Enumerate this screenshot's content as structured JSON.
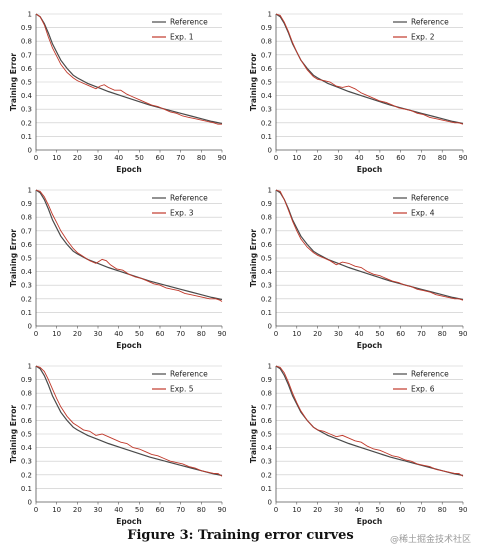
{
  "caption": "Figure 3: Training error curves",
  "watermark": "@稀土掘金技术社区",
  "colors": {
    "reference": "#4a4a4a",
    "experiment": "#c0392b",
    "grid": "#c8c8c8"
  },
  "chart_data": [
    {
      "type": "line",
      "xlabel": "Epoch",
      "ylabel": "Training Error",
      "xlim": [
        0,
        90
      ],
      "ylim": [
        0,
        1
      ],
      "xticks": [
        0,
        10,
        20,
        30,
        40,
        50,
        60,
        70,
        80,
        90
      ],
      "yticks": [
        0,
        0.1,
        0.2,
        0.3,
        0.4,
        0.5,
        0.6,
        0.7,
        0.8,
        0.9,
        1
      ],
      "grid": true,
      "legend_position": "top-right",
      "series": [
        {
          "name": "Reference",
          "x": [
            0,
            2,
            4,
            6,
            8,
            10,
            12,
            15,
            18,
            20,
            25,
            30,
            35,
            40,
            45,
            50,
            55,
            60,
            65,
            70,
            75,
            80,
            85,
            90
          ],
          "y": [
            1,
            0.98,
            0.93,
            0.86,
            0.78,
            0.72,
            0.66,
            0.6,
            0.55,
            0.53,
            0.49,
            0.46,
            0.43,
            0.405,
            0.38,
            0.355,
            0.33,
            0.31,
            0.29,
            0.27,
            0.25,
            0.23,
            0.21,
            0.195
          ]
        },
        {
          "name": "Exp. 1",
          "x": [
            0,
            2,
            4,
            6,
            8,
            10,
            12,
            15,
            18,
            20,
            23,
            26,
            29,
            31,
            33,
            35,
            38,
            41,
            44,
            47,
            50,
            53,
            56,
            59,
            62,
            65,
            68,
            71,
            74,
            77,
            80,
            83,
            86,
            88,
            90
          ],
          "y": [
            1,
            0.98,
            0.92,
            0.83,
            0.75,
            0.69,
            0.63,
            0.57,
            0.53,
            0.51,
            0.49,
            0.47,
            0.45,
            0.47,
            0.48,
            0.46,
            0.44,
            0.44,
            0.41,
            0.39,
            0.37,
            0.35,
            0.33,
            0.32,
            0.3,
            0.28,
            0.27,
            0.25,
            0.24,
            0.23,
            0.22,
            0.21,
            0.2,
            0.19,
            0.19
          ]
        }
      ]
    },
    {
      "type": "line",
      "xlabel": "Epoch",
      "ylabel": "Training Error",
      "xlim": [
        0,
        90
      ],
      "ylim": [
        0,
        1
      ],
      "xticks": [
        0,
        10,
        20,
        30,
        40,
        50,
        60,
        70,
        80,
        90
      ],
      "yticks": [
        0,
        0.1,
        0.2,
        0.3,
        0.4,
        0.5,
        0.6,
        0.7,
        0.8,
        0.9,
        1
      ],
      "grid": true,
      "legend_position": "top-right",
      "series": [
        {
          "name": "Reference",
          "x": [
            0,
            2,
            4,
            6,
            8,
            10,
            12,
            15,
            18,
            20,
            25,
            30,
            35,
            40,
            45,
            50,
            55,
            60,
            65,
            70,
            75,
            80,
            85,
            90
          ],
          "y": [
            1,
            0.98,
            0.93,
            0.86,
            0.78,
            0.72,
            0.66,
            0.6,
            0.55,
            0.53,
            0.49,
            0.46,
            0.43,
            0.405,
            0.38,
            0.355,
            0.33,
            0.31,
            0.29,
            0.27,
            0.25,
            0.23,
            0.21,
            0.195
          ]
        },
        {
          "name": "Exp. 2",
          "x": [
            0,
            2,
            4,
            6,
            8,
            10,
            12,
            15,
            18,
            20,
            23,
            26,
            29,
            32,
            35,
            38,
            41,
            44,
            47,
            50,
            53,
            56,
            59,
            62,
            65,
            68,
            71,
            74,
            77,
            80,
            83,
            86,
            88,
            90
          ],
          "y": [
            1,
            0.99,
            0.94,
            0.87,
            0.79,
            0.72,
            0.66,
            0.59,
            0.54,
            0.52,
            0.51,
            0.5,
            0.47,
            0.46,
            0.47,
            0.45,
            0.42,
            0.4,
            0.38,
            0.36,
            0.35,
            0.33,
            0.31,
            0.3,
            0.29,
            0.27,
            0.26,
            0.24,
            0.23,
            0.22,
            0.21,
            0.2,
            0.2,
            0.19
          ]
        }
      ]
    },
    {
      "type": "line",
      "xlabel": "Epoch",
      "ylabel": "Training Error",
      "xlim": [
        0,
        90
      ],
      "ylim": [
        0,
        1
      ],
      "xticks": [
        0,
        10,
        20,
        30,
        40,
        50,
        60,
        70,
        80,
        90
      ],
      "yticks": [
        0,
        0.1,
        0.2,
        0.3,
        0.4,
        0.5,
        0.6,
        0.7,
        0.8,
        0.9,
        1
      ],
      "grid": true,
      "legend_position": "top-right",
      "series": [
        {
          "name": "Reference",
          "x": [
            0,
            2,
            4,
            6,
            8,
            10,
            12,
            15,
            18,
            20,
            25,
            30,
            35,
            40,
            45,
            50,
            55,
            60,
            65,
            70,
            75,
            80,
            85,
            90
          ],
          "y": [
            1,
            0.98,
            0.93,
            0.86,
            0.78,
            0.72,
            0.66,
            0.6,
            0.55,
            0.53,
            0.49,
            0.46,
            0.43,
            0.405,
            0.38,
            0.355,
            0.33,
            0.31,
            0.29,
            0.27,
            0.25,
            0.23,
            0.21,
            0.195
          ]
        },
        {
          "name": "Exp. 3",
          "x": [
            0,
            2,
            4,
            6,
            8,
            10,
            12,
            15,
            18,
            20,
            23,
            26,
            29,
            32,
            34,
            36,
            39,
            42,
            45,
            48,
            51,
            54,
            57,
            60,
            63,
            66,
            69,
            72,
            75,
            78,
            81,
            84,
            87,
            89,
            90
          ],
          "y": [
            1,
            0.99,
            0.95,
            0.89,
            0.82,
            0.76,
            0.7,
            0.63,
            0.57,
            0.54,
            0.51,
            0.48,
            0.46,
            0.49,
            0.48,
            0.45,
            0.42,
            0.41,
            0.38,
            0.36,
            0.35,
            0.33,
            0.31,
            0.3,
            0.28,
            0.27,
            0.26,
            0.24,
            0.23,
            0.22,
            0.21,
            0.2,
            0.2,
            0.19,
            0.18
          ]
        }
      ]
    },
    {
      "type": "line",
      "xlabel": "Epoch",
      "ylabel": "Training Error",
      "xlim": [
        0,
        90
      ],
      "ylim": [
        0,
        1
      ],
      "xticks": [
        0,
        10,
        20,
        30,
        40,
        50,
        60,
        70,
        80,
        90
      ],
      "yticks": [
        0,
        0.1,
        0.2,
        0.3,
        0.4,
        0.5,
        0.6,
        0.7,
        0.8,
        0.9,
        1
      ],
      "grid": true,
      "legend_position": "top-right",
      "series": [
        {
          "name": "Reference",
          "x": [
            0,
            2,
            4,
            6,
            8,
            10,
            12,
            15,
            18,
            20,
            25,
            30,
            35,
            40,
            45,
            50,
            55,
            60,
            65,
            70,
            75,
            80,
            85,
            90
          ],
          "y": [
            1,
            0.98,
            0.93,
            0.86,
            0.78,
            0.72,
            0.66,
            0.6,
            0.55,
            0.53,
            0.49,
            0.46,
            0.43,
            0.405,
            0.38,
            0.355,
            0.33,
            0.31,
            0.29,
            0.27,
            0.25,
            0.23,
            0.21,
            0.195
          ]
        },
        {
          "name": "Exp. 4",
          "x": [
            0,
            2,
            4,
            6,
            8,
            10,
            12,
            15,
            18,
            20,
            23,
            26,
            29,
            32,
            35,
            38,
            41,
            44,
            47,
            50,
            53,
            56,
            59,
            62,
            65,
            68,
            71,
            74,
            77,
            80,
            83,
            86,
            88,
            90
          ],
          "y": [
            1,
            0.99,
            0.93,
            0.85,
            0.77,
            0.7,
            0.64,
            0.58,
            0.54,
            0.52,
            0.5,
            0.48,
            0.45,
            0.47,
            0.46,
            0.44,
            0.43,
            0.4,
            0.38,
            0.37,
            0.35,
            0.33,
            0.32,
            0.3,
            0.29,
            0.27,
            0.26,
            0.25,
            0.23,
            0.22,
            0.21,
            0.2,
            0.2,
            0.19
          ]
        }
      ]
    },
    {
      "type": "line",
      "xlabel": "Epoch",
      "ylabel": "Training Error",
      "xlim": [
        0,
        90
      ],
      "ylim": [
        0,
        1
      ],
      "xticks": [
        0,
        10,
        20,
        30,
        40,
        50,
        60,
        70,
        80,
        90
      ],
      "yticks": [
        0,
        0.1,
        0.2,
        0.3,
        0.4,
        0.5,
        0.6,
        0.7,
        0.8,
        0.9,
        1
      ],
      "grid": true,
      "legend_position": "top-right",
      "series": [
        {
          "name": "Reference",
          "x": [
            0,
            2,
            4,
            6,
            8,
            10,
            12,
            15,
            18,
            20,
            25,
            30,
            35,
            40,
            45,
            50,
            55,
            60,
            65,
            70,
            75,
            80,
            85,
            90
          ],
          "y": [
            1,
            0.98,
            0.93,
            0.86,
            0.78,
            0.72,
            0.66,
            0.6,
            0.55,
            0.53,
            0.49,
            0.46,
            0.43,
            0.405,
            0.38,
            0.355,
            0.33,
            0.31,
            0.29,
            0.27,
            0.25,
            0.23,
            0.21,
            0.195
          ]
        },
        {
          "name": "Exp. 5",
          "x": [
            0,
            2,
            4,
            6,
            8,
            10,
            12,
            15,
            18,
            20,
            23,
            26,
            29,
            32,
            35,
            38,
            41,
            44,
            47,
            50,
            53,
            56,
            59,
            62,
            65,
            68,
            71,
            74,
            77,
            80,
            83,
            86,
            88,
            90
          ],
          "y": [
            1,
            0.99,
            0.96,
            0.9,
            0.83,
            0.76,
            0.7,
            0.63,
            0.58,
            0.56,
            0.53,
            0.52,
            0.49,
            0.5,
            0.48,
            0.46,
            0.44,
            0.43,
            0.4,
            0.39,
            0.37,
            0.35,
            0.34,
            0.32,
            0.3,
            0.29,
            0.28,
            0.26,
            0.25,
            0.23,
            0.22,
            0.21,
            0.21,
            0.19
          ]
        }
      ]
    },
    {
      "type": "line",
      "xlabel": "Epoch",
      "ylabel": "Training Error",
      "xlim": [
        0,
        90
      ],
      "ylim": [
        0,
        1
      ],
      "xticks": [
        0,
        10,
        20,
        30,
        40,
        50,
        60,
        70,
        80,
        90
      ],
      "yticks": [
        0,
        0.1,
        0.2,
        0.3,
        0.4,
        0.5,
        0.6,
        0.7,
        0.8,
        0.9,
        1
      ],
      "grid": true,
      "legend_position": "top-right",
      "series": [
        {
          "name": "Reference",
          "x": [
            0,
            2,
            4,
            6,
            8,
            10,
            12,
            15,
            18,
            20,
            25,
            30,
            35,
            40,
            45,
            50,
            55,
            60,
            65,
            70,
            75,
            80,
            85,
            90
          ],
          "y": [
            1,
            0.98,
            0.93,
            0.86,
            0.78,
            0.72,
            0.66,
            0.6,
            0.55,
            0.53,
            0.49,
            0.46,
            0.43,
            0.405,
            0.38,
            0.355,
            0.33,
            0.31,
            0.29,
            0.27,
            0.25,
            0.23,
            0.21,
            0.195
          ]
        },
        {
          "name": "Exp. 6",
          "x": [
            0,
            2,
            4,
            6,
            8,
            10,
            12,
            15,
            18,
            20,
            23,
            26,
            29,
            32,
            35,
            38,
            41,
            44,
            47,
            50,
            53,
            56,
            59,
            62,
            65,
            68,
            71,
            74,
            77,
            80,
            83,
            86,
            88,
            90
          ],
          "y": [
            1,
            0.99,
            0.95,
            0.88,
            0.8,
            0.73,
            0.67,
            0.6,
            0.55,
            0.53,
            0.52,
            0.5,
            0.48,
            0.49,
            0.47,
            0.45,
            0.44,
            0.41,
            0.39,
            0.38,
            0.36,
            0.34,
            0.33,
            0.31,
            0.3,
            0.28,
            0.27,
            0.26,
            0.24,
            0.23,
            0.22,
            0.21,
            0.21,
            0.19
          ]
        }
      ]
    }
  ]
}
